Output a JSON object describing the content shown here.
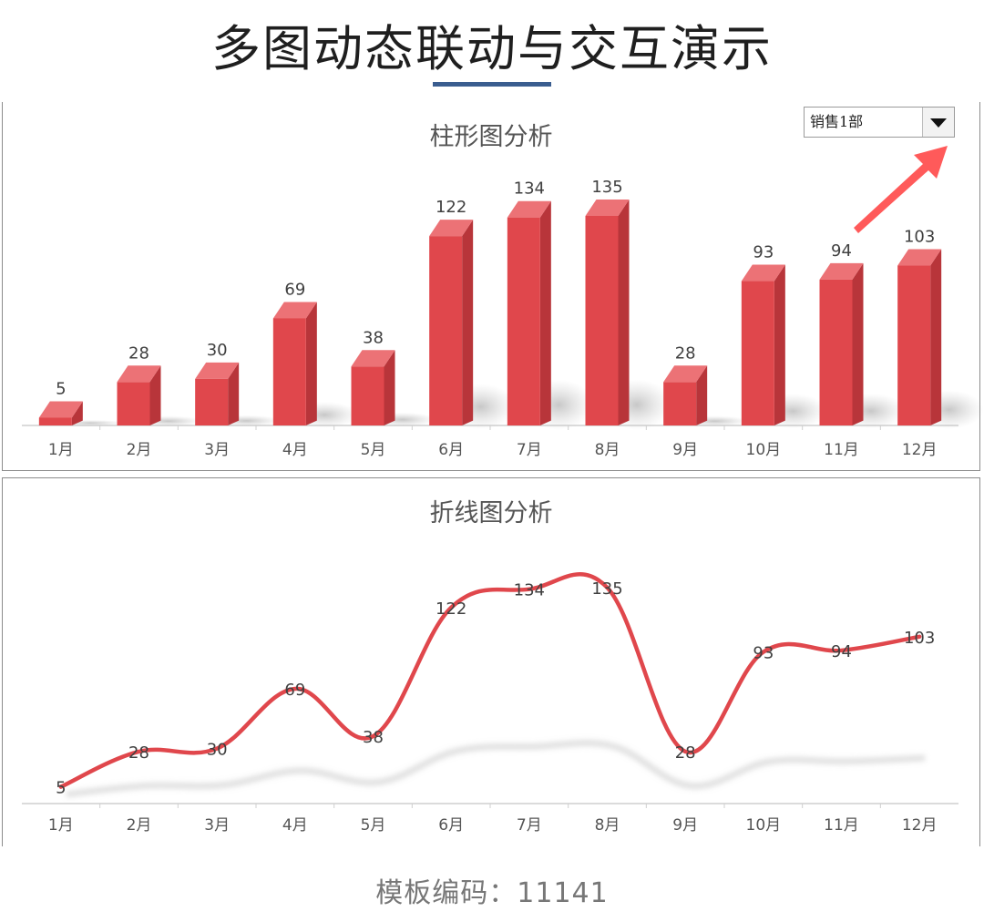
{
  "page": {
    "title": "多图动态联动与交互演示",
    "footer": "模板编码：11141"
  },
  "dropdown": {
    "selected": "销售1部",
    "arrow_color": "#ff5a5a"
  },
  "colors": {
    "bar_front": "#e0474c",
    "bar_top": "#ec7276",
    "bar_side": "#b8353a",
    "line": "#e0474c",
    "title_underline": "#3a5d8f"
  },
  "chart_data": [
    {
      "type": "bar",
      "title": "柱形图分析",
      "categories": [
        "1月",
        "2月",
        "3月",
        "4月",
        "5月",
        "6月",
        "7月",
        "8月",
        "9月",
        "10月",
        "11月",
        "12月"
      ],
      "values": [
        5,
        28,
        30,
        69,
        38,
        122,
        134,
        135,
        28,
        93,
        94,
        103
      ],
      "ylim": [
        0,
        135
      ],
      "grid": false,
      "legend": "none"
    },
    {
      "type": "line",
      "title": "折线图分析",
      "categories": [
        "1月",
        "2月",
        "3月",
        "4月",
        "5月",
        "6月",
        "7月",
        "8月",
        "9月",
        "10月",
        "11月",
        "12月"
      ],
      "values": [
        5,
        28,
        30,
        69,
        38,
        122,
        134,
        135,
        28,
        93,
        94,
        103
      ],
      "ylim": [
        0,
        135
      ],
      "grid": false,
      "legend": "none",
      "smooth": true
    }
  ]
}
